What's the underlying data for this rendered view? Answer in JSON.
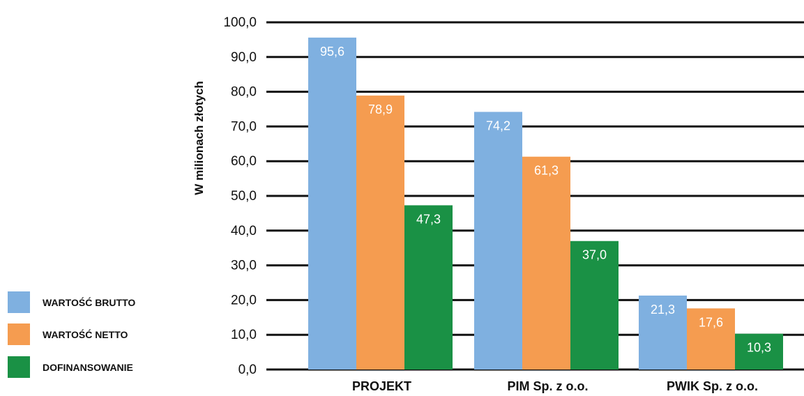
{
  "chart_data": {
    "type": "bar",
    "title": "",
    "xlabel": "",
    "ylabel": "W milionach złotych",
    "ylim": [
      0,
      100
    ],
    "ytick_step": 10,
    "tick_format": "one_decimal_comma",
    "grid": true,
    "legend_position": "bottom-left",
    "categories": [
      "PROJEKT",
      "PIM Sp. z o.o.",
      "PWIK Sp. z o.o."
    ],
    "series": [
      {
        "name": "WARTOŚĆ BRUTTO",
        "color": "#7fb0e0",
        "values": [
          95.6,
          74.2,
          21.3
        ],
        "labels": [
          "95,6",
          "74,2",
          "21,3"
        ]
      },
      {
        "name": "WARTOŚĆ NETTO",
        "color": "#f59c50",
        "values": [
          78.9,
          61.3,
          17.6
        ],
        "labels": [
          "78,9",
          "61,3",
          "17,6"
        ]
      },
      {
        "name": "DOFINANSOWANIE",
        "color": "#1a9145",
        "values": [
          47.3,
          37.0,
          10.3
        ],
        "labels": [
          "47,3",
          "37,0",
          "10,3"
        ]
      }
    ]
  }
}
